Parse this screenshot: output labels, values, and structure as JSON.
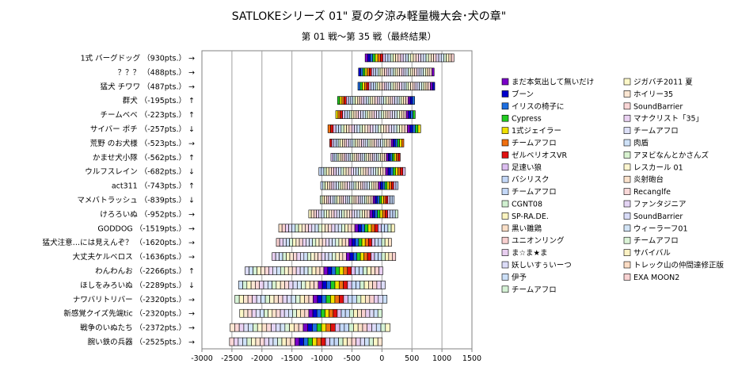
{
  "chart_data": {
    "type": "bar",
    "orientation": "horizontal-stacked",
    "title": "SATLOKEシリーズ 01\" 夏の夕涼み軽量機大会･犬の章\"",
    "subtitle": "第 01 戦～第 35 戦（最終結果）",
    "xlim": [
      -3000,
      1500
    ],
    "xticks": [
      "-3000",
      "-2500",
      "-2000",
      "-1500",
      "-1000",
      "-500",
      "0",
      "500",
      "1000",
      "1500"
    ],
    "grid": true,
    "legend_position": "right",
    "rows": [
      {
        "name": "1式 バーグドッグ",
        "pts": "930pts.",
        "arrow": "→",
        "min": -280,
        "max": 1200
      },
      {
        "name": "？？？",
        "pts": "488pts.",
        "arrow": "→",
        "min": -390,
        "max": 870
      },
      {
        "name": "猛犬 チワワ",
        "pts": "487pts.",
        "arrow": "→",
        "min": -400,
        "max": 880
      },
      {
        "name": "群犬",
        "pts": "-195pts.",
        "arrow": "↑",
        "min": -740,
        "max": 545
      },
      {
        "name": "チームベベ",
        "pts": "-223pts.",
        "arrow": "↑",
        "min": -770,
        "max": 555
      },
      {
        "name": "サイバー ポチ",
        "pts": "-257pts.",
        "arrow": "↓",
        "min": -900,
        "max": 645
      },
      {
        "name": "荒野 のお犬様",
        "pts": "-523pts.",
        "arrow": "→",
        "min": -870,
        "max": 365
      },
      {
        "name": "かませ犬小隊",
        "pts": "-562pts.",
        "arrow": "↑",
        "min": -850,
        "max": 305
      },
      {
        "name": "ウルフスレイン",
        "pts": "-682pts.",
        "arrow": "↓",
        "min": -1050,
        "max": 390
      },
      {
        "name": "act311",
        "pts": "-743pts.",
        "arrow": "↑",
        "min": -1020,
        "max": 270
      },
      {
        "name": "マメバトラッシュ",
        "pts": "-839pts.",
        "arrow": "↓",
        "min": -1030,
        "max": 205
      },
      {
        "name": "けろろいぬ",
        "pts": "-952pts.",
        "arrow": "→",
        "min": -1220,
        "max": 265
      },
      {
        "name": "GODDOG",
        "pts": "-1519pts.",
        "arrow": "→",
        "min": -1720,
        "max": 210
      },
      {
        "name": "猛犬注意…には見えんぞ？",
        "pts": "-1620pts.",
        "arrow": "→",
        "min": -1760,
        "max": 160
      },
      {
        "name": "大丈夫ケルベロス",
        "pts": "-1636pts.",
        "arrow": "→",
        "min": -1830,
        "max": 230
      },
      {
        "name": "わんわんお",
        "pts": "-2266pts.",
        "arrow": "↑",
        "min": -2280,
        "max": 15
      },
      {
        "name": "ほしをみろいぬ",
        "pts": "-2289pts.",
        "arrow": "↓",
        "min": -2390,
        "max": 55
      },
      {
        "name": "ナワバリトリバー",
        "pts": "-2320pts.",
        "arrow": "→",
        "min": -2450,
        "max": 85
      },
      {
        "name": "新感覚クイズ先端tic",
        "pts": "-2320pts.",
        "arrow": "→",
        "min": -2370,
        "max": 0
      },
      {
        "name": "戦争のいぬたち",
        "pts": "-2372pts.",
        "arrow": "→",
        "min": -2530,
        "max": 135
      },
      {
        "name": "腕い鉄の兵器",
        "pts": "-2525pts.",
        "arrow": "→",
        "min": -2540,
        "max": 5
      }
    ],
    "legend": [
      {
        "label": "まだ本気出して無いだけ",
        "color": "#7a00c8"
      },
      {
        "label": "ブーン",
        "color": "#0000cc"
      },
      {
        "label": "イリスの椅子に",
        "color": "#1e6fe0"
      },
      {
        "label": "Cypress",
        "color": "#22cc22"
      },
      {
        "label": "1式ジェイラー",
        "color": "#f0e000"
      },
      {
        "label": "チームアフロ",
        "color": "#f07010"
      },
      {
        "label": "ゼルベリオスVR",
        "color": "#e01010"
      },
      {
        "label": "足速い狼",
        "color": "#dcbef0"
      },
      {
        "label": "バシリスク",
        "color": "#c4d8f8"
      },
      {
        "label": "チームアフロ",
        "color": "#c4d8f8"
      },
      {
        "label": "CGNT08",
        "color": "#d0f0d0"
      },
      {
        "label": "SP-RA.DE.",
        "color": "#fbf4c0"
      },
      {
        "label": "黒い雛鶏",
        "color": "#fbe0c8"
      },
      {
        "label": "ユニオンリング",
        "color": "#f8d0d0"
      },
      {
        "label": "ま☆ま★ま",
        "color": "#e8cef0"
      },
      {
        "label": "妖しいすぅいーつ",
        "color": "#dcdcf8"
      },
      {
        "label": "伊予",
        "color": "#cce0f8"
      },
      {
        "label": "チームアフロ",
        "color": "#d6f2d6"
      },
      {
        "label": "ジガバチ2011 夏",
        "color": "#fdf8c8"
      },
      {
        "label": "ホイリー35",
        "color": "#fbe6d2"
      },
      {
        "label": "SoundBarrier",
        "color": "#fad6d6"
      },
      {
        "label": "マナクリスト「35」",
        "color": "#ead2f2"
      },
      {
        "label": "チームアフロ",
        "color": "#dde0f8"
      },
      {
        "label": "肉盾",
        "color": "#cfe2f8"
      },
      {
        "label": "アヌビなんとかさんズ",
        "color": "#d8f2d0"
      },
      {
        "label": "レスカール 01",
        "color": "#fdf6d0"
      },
      {
        "label": "炎射砲台",
        "color": "#fbe2cc"
      },
      {
        "label": "Recanglfe",
        "color": "#f9d8d8"
      },
      {
        "label": "ファンタジニア",
        "color": "#e4d4f4"
      },
      {
        "label": "SoundBarrier",
        "color": "#d8dcf8"
      },
      {
        "label": "ウィーラーフ01",
        "color": "#d2e4f6"
      },
      {
        "label": "チームアフロ",
        "color": "#dcf4d8"
      },
      {
        "label": "サバイバル",
        "color": "#fdf2c4"
      },
      {
        "label": "トレック山の仲間達修正版",
        "color": "#fbdcc4"
      },
      {
        "label": "EXA MOON2",
        "color": "#f8d2d2"
      }
    ]
  }
}
